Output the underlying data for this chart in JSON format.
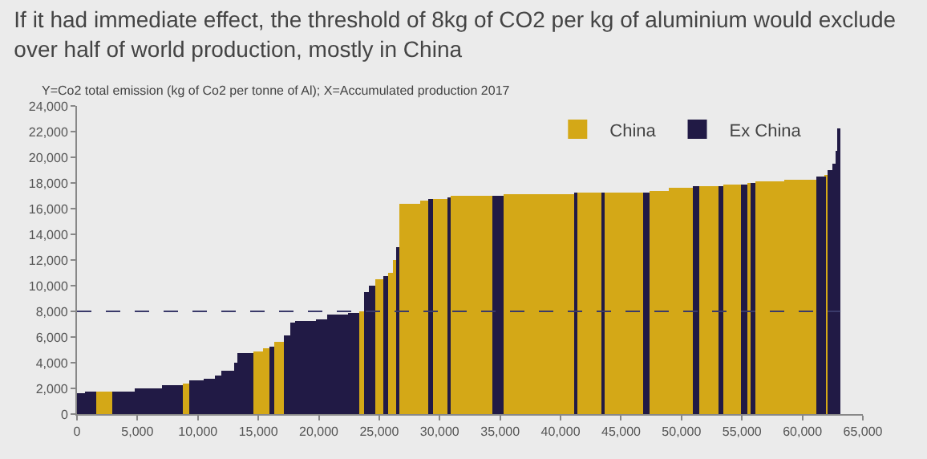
{
  "chart_data": {
    "type": "histogram",
    "title": "If it had immediate effect, the threshold of 8kg of CO2 per kg of aluminium would exclude over half of world production, mostly in China",
    "subtitle": "Y=Co2 total emission (kg of Co2 per tonne of Al); X=Accumulated production 2017",
    "bins": [
      0,
      700,
      1600,
      2950,
      4800,
      7000,
      8800,
      9300,
      10500,
      11400,
      12000,
      13100,
      13300,
      14600,
      15400,
      16050,
      16300,
      17150,
      17700,
      18100,
      19800,
      20650,
      22400,
      23400,
      23750,
      24100,
      24650,
      25400,
      25750,
      26200,
      26400,
      26700,
      28400,
      29060,
      29500,
      30650,
      30950,
      34400,
      35350,
      41100,
      41450,
      43400,
      43550,
      46800,
      47300,
      49000,
      51000,
      51450,
      53100,
      53400,
      54950,
      55500,
      55750,
      56050,
      58500,
      61150,
      61900,
      62100,
      62600,
      62800,
      62950,
      63150
    ],
    "series": [
      {
        "name": "China",
        "color": "#d4a817",
        "values": [
          null,
          null,
          1800,
          null,
          null,
          null,
          2400,
          null,
          null,
          null,
          null,
          null,
          null,
          4900,
          5100,
          null,
          5600,
          null,
          null,
          null,
          null,
          null,
          null,
          8000,
          null,
          null,
          10500,
          null,
          11000,
          12000,
          null,
          16400,
          16600,
          null,
          16800,
          null,
          17000,
          null,
          17100,
          null,
          17200,
          null,
          17300,
          null,
          17400,
          17600,
          null,
          17700,
          null,
          17900,
          null,
          18000,
          null,
          18100,
          18300,
          null,
          18600,
          null,
          null,
          null,
          null
        ]
      },
      {
        "name": "Ex China",
        "color": "#211a45",
        "values": [
          1600,
          1700,
          null,
          1800,
          2000,
          2200,
          null,
          2600,
          2700,
          3000,
          3400,
          4000,
          4700,
          null,
          null,
          5300,
          null,
          6100,
          7100,
          7300,
          7400,
          7700,
          7900,
          null,
          9500,
          10000,
          null,
          10800,
          null,
          null,
          13000,
          null,
          null,
          16700,
          null,
          16900,
          null,
          17000,
          null,
          17200,
          null,
          17300,
          null,
          17300,
          null,
          null,
          17700,
          null,
          17800,
          null,
          17900,
          null,
          18000,
          null,
          null,
          18500,
          null,
          19000,
          19500,
          20500,
          22200
        ]
      }
    ],
    "xlim": [
      0,
      65000
    ],
    "xticks": [
      0,
      {
        "value": 5000,
        "label": "5,000"
      },
      {
        "value": 10000,
        "label": "10,000"
      },
      {
        "value": 15000,
        "label": "15,000"
      },
      {
        "value": 20000,
        "label": "20,000"
      },
      {
        "value": 25000,
        "label": "25,000"
      },
      {
        "value": 30000,
        "label": "30,000"
      },
      {
        "value": 35000,
        "label": "35,000"
      },
      {
        "value": 40000,
        "label": "40,000"
      },
      {
        "value": 45000,
        "label": "45,000"
      },
      {
        "value": 50000,
        "label": "50,000"
      },
      {
        "value": 55000,
        "label": "55,000"
      },
      {
        "value": 60000,
        "label": "60,000"
      },
      {
        "value": 65000,
        "label": "65,000"
      }
    ],
    "ylim": [
      0,
      24000
    ],
    "yticks": [
      0,
      {
        "value": 2000,
        "label": "2,000"
      },
      {
        "value": 4000,
        "label": "4,000"
      },
      {
        "value": 6000,
        "label": "6,000"
      },
      {
        "value": 8000,
        "label": "8,000"
      },
      {
        "value": 10000,
        "label": "10,000"
      },
      {
        "value": 12000,
        "label": "12,000"
      },
      {
        "value": 14000,
        "label": "14,000"
      },
      {
        "value": 16000,
        "label": "16,000"
      },
      {
        "value": 18000,
        "label": "18,000"
      },
      {
        "value": 20000,
        "label": "20,000"
      },
      {
        "value": 22000,
        "label": "22,000"
      },
      {
        "value": 24000,
        "label": "24,000"
      }
    ],
    "ref_lines": [
      {
        "axis": "y",
        "value": 8000,
        "label": null,
        "color": "#3a3a6a",
        "line_style": "dashed"
      }
    ],
    "grid": false,
    "legend": "top right"
  }
}
